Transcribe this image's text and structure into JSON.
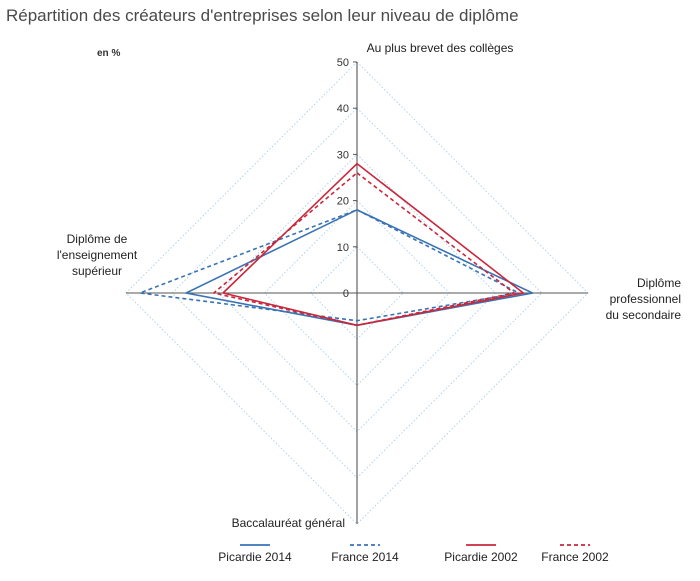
{
  "chart_data": {
    "type": "radar",
    "title": "Répartition des créateurs d'entreprises selon leur niveau de diplôme",
    "unit_label": "en %",
    "axes": [
      {
        "id": "top",
        "label_lines": [
          "Au plus brevet des collèges"
        ]
      },
      {
        "id": "right",
        "label_lines": [
          "Diplôme",
          "professionnel",
          "du secondaire"
        ]
      },
      {
        "id": "bottom",
        "label_lines": [
          "Baccalauréat général"
        ]
      },
      {
        "id": "left",
        "label_lines": [
          "Diplôme de",
          "l'enseignement",
          "supérieur"
        ]
      }
    ],
    "scale": {
      "min": 0,
      "max": 50,
      "step": 10,
      "ticks": [
        "0",
        "10",
        "20",
        "30",
        "40",
        "50"
      ]
    },
    "grid": true,
    "series": [
      {
        "name": "Picardie 2014",
        "color": "#3a73b4",
        "dash": false,
        "values": [
          18,
          38,
          7,
          37
        ]
      },
      {
        "name": "France 2014",
        "color": "#3a73b4",
        "dash": true,
        "values": [
          18,
          35,
          6,
          47
        ]
      },
      {
        "name": "Picardie 2002",
        "color": "#c8283c",
        "dash": false,
        "values": [
          28,
          36,
          7,
          29
        ]
      },
      {
        "name": "France 2002",
        "color": "#c8283c",
        "dash": true,
        "values": [
          26,
          34,
          7,
          31
        ]
      }
    ],
    "legend_position": "bottom"
  }
}
